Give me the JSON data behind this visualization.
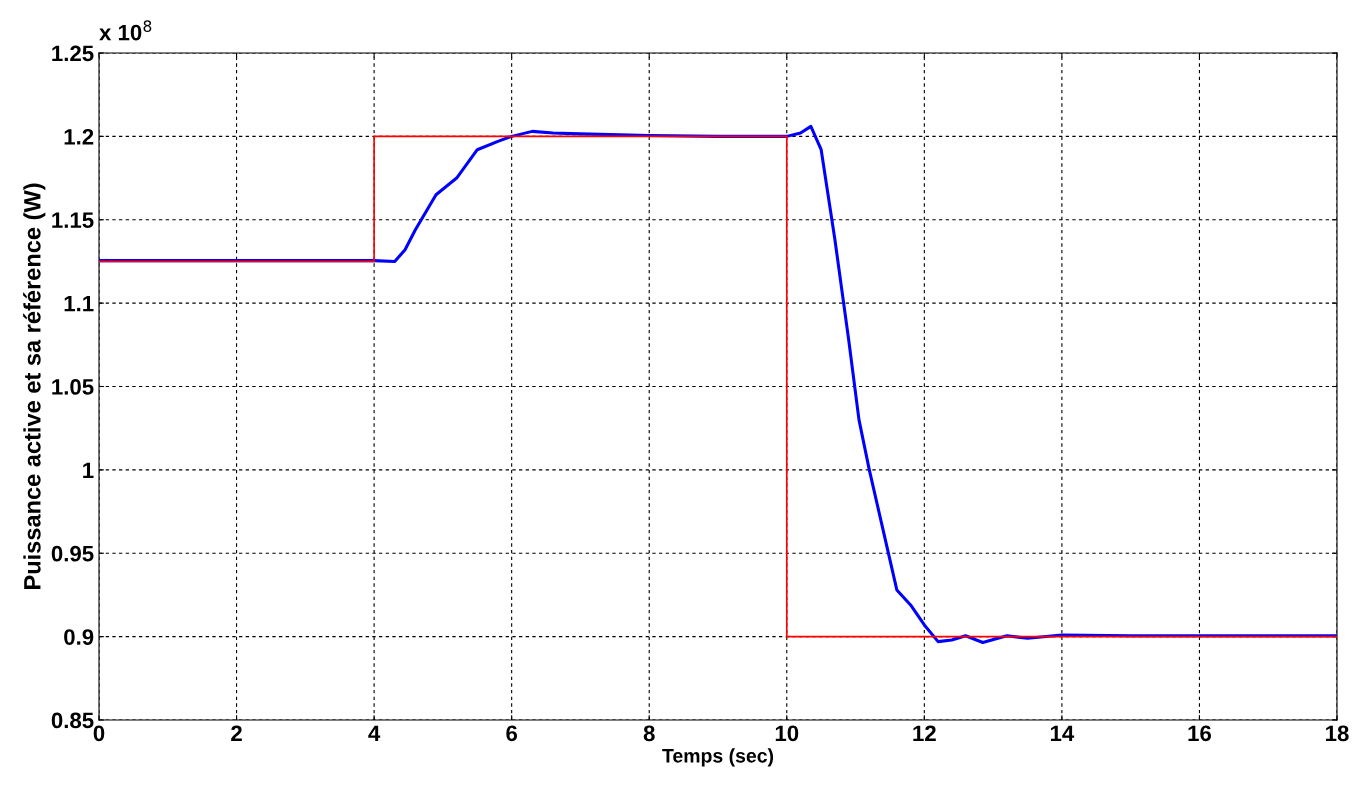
{
  "chart_data": {
    "type": "line",
    "xlabel": "Temps (sec)",
    "ylabel": "Puissance active et sa référence (W)",
    "annotations": [
      "x 10$^{8}$"
    ],
    "xlim": [
      0,
      18
    ],
    "xticks": [
      0,
      2,
      4,
      6,
      8,
      10,
      12,
      14,
      16,
      18
    ],
    "ylim": [
      0.85,
      1.25
    ],
    "yticks": [
      0.85,
      0.9,
      0.95,
      1,
      1.05,
      1.1,
      1.15,
      1.2,
      1.25
    ],
    "grid": true,
    "line_style": "solid",
    "marker": "none",
    "series": [
      {
        "color": "#ff0000",
        "x": [
          0,
          4,
          4,
          10,
          10,
          18
        ],
        "values": [
          1.125,
          1.125,
          1.2,
          1.2,
          0.9,
          0.9
        ]
      },
      {
        "color": "#0000ff",
        "x": [
          0,
          1,
          2,
          3,
          4,
          4.3,
          4.45,
          4.6,
          4.9,
          5.2,
          5.5,
          5.8,
          6.0,
          6.3,
          6.6,
          7,
          8,
          9,
          10,
          10.2,
          10.35,
          10.5,
          10.7,
          10.9,
          11.05,
          11.2,
          11.4,
          11.6,
          11.8,
          12.0,
          12.2,
          12.4,
          12.6,
          12.85,
          13.2,
          13.5,
          14,
          15,
          16,
          17,
          18
        ],
        "values": [
          1.1255,
          1.1255,
          1.1255,
          1.1255,
          1.1255,
          1.125,
          1.132,
          1.144,
          1.165,
          1.175,
          1.192,
          1.197,
          1.2,
          1.203,
          1.202,
          1.2015,
          1.2005,
          1.2,
          1.2,
          1.202,
          1.206,
          1.192,
          1.138,
          1.078,
          1.03,
          1.0,
          0.964,
          0.928,
          0.919,
          0.907,
          0.897,
          0.898,
          0.9005,
          0.8965,
          0.9005,
          0.899,
          0.901,
          0.9005,
          0.9005,
          0.9005,
          0.9005
        ]
      }
    ]
  }
}
